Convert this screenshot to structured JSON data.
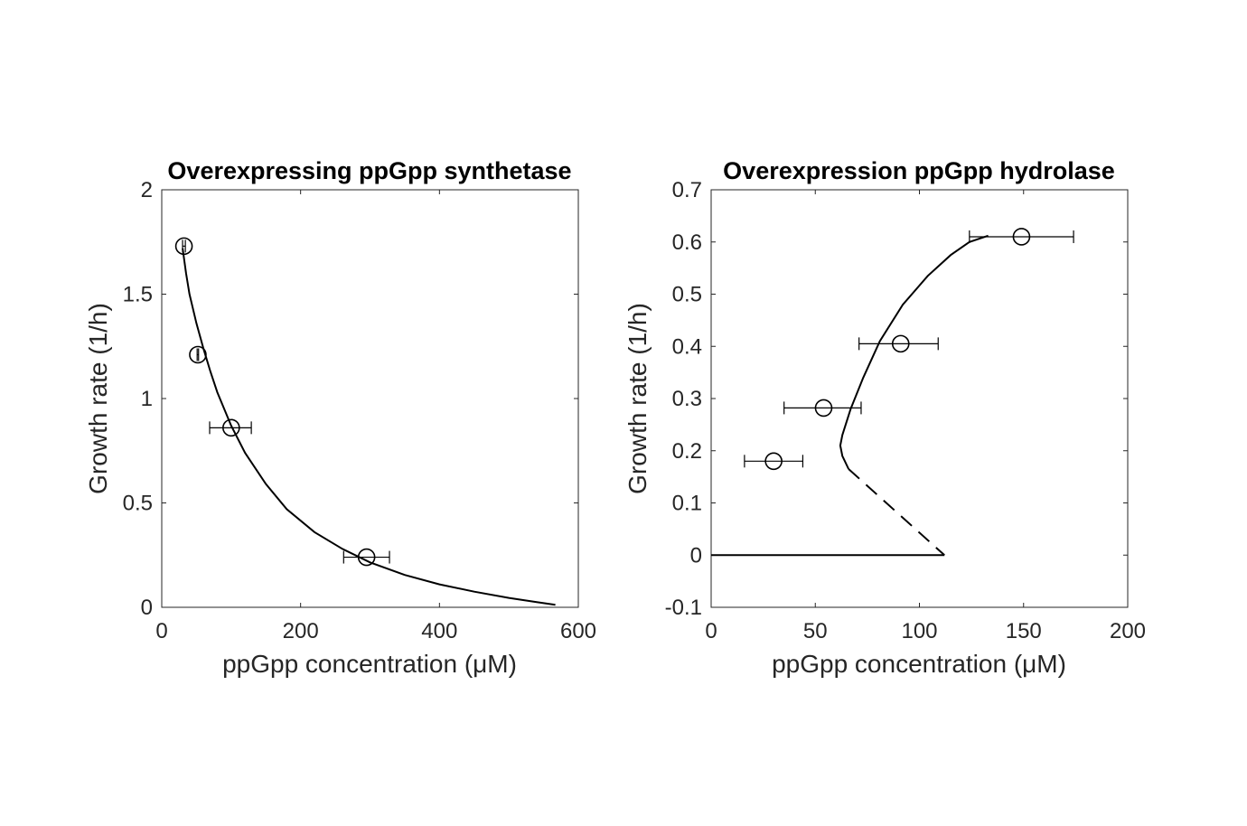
{
  "chart_data": [
    {
      "type": "scatter",
      "title": "Overexpressing ppGpp synthetase",
      "xlabel": "ppGpp concentration (μM)",
      "ylabel": "Growth rate (1/h)",
      "xlim": [
        0,
        600
      ],
      "ylim": [
        0,
        2
      ],
      "xticks": [
        0,
        200,
        400,
        600
      ],
      "yticks": [
        0,
        0.5,
        1,
        1.5,
        2
      ],
      "xtick_labels": [
        "0",
        "200",
        "400",
        "600"
      ],
      "ytick_labels": [
        "0",
        "0.5",
        "1",
        "1.5",
        "2"
      ],
      "grid": false,
      "points": [
        {
          "x": 32,
          "y": 1.73,
          "xerr": [
            30,
            34
          ]
        },
        {
          "x": 52,
          "y": 1.21,
          "xerr": [
            51,
            53
          ]
        },
        {
          "x": 100,
          "y": 0.86,
          "xerr": [
            69,
            129
          ]
        },
        {
          "x": 295,
          "y": 0.24,
          "xerr": [
            262,
            328
          ]
        }
      ],
      "curves": [
        {
          "style": "solid",
          "points": [
            [
              30,
              1.72
            ],
            [
              35,
              1.6
            ],
            [
              40,
              1.5
            ],
            [
              50,
              1.36
            ],
            [
              60,
              1.24
            ],
            [
              70,
              1.13
            ],
            [
              80,
              1.03
            ],
            [
              100,
              0.87
            ],
            [
              120,
              0.74
            ],
            [
              150,
              0.59
            ],
            [
              180,
              0.47
            ],
            [
              220,
              0.36
            ],
            [
              260,
              0.28
            ],
            [
              300,
              0.215
            ],
            [
              350,
              0.155
            ],
            [
              400,
              0.11
            ],
            [
              450,
              0.075
            ],
            [
              500,
              0.045
            ],
            [
              540,
              0.025
            ],
            [
              567,
              0.012
            ]
          ]
        }
      ]
    },
    {
      "type": "scatter",
      "title": "Overexpression ppGpp hydrolase",
      "xlabel": "ppGpp concentration (μM)",
      "ylabel": "Growth rate (1/h)",
      "xlim": [
        0,
        200
      ],
      "ylim": [
        -0.1,
        0.7
      ],
      "xticks": [
        0,
        50,
        100,
        150,
        200
      ],
      "yticks": [
        -0.1,
        0,
        0.1,
        0.2,
        0.3,
        0.4,
        0.5,
        0.6,
        0.7
      ],
      "xtick_labels": [
        "0",
        "50",
        "100",
        "150",
        "200"
      ],
      "ytick_labels": [
        "-0.1",
        "0",
        "0.1",
        "0.2",
        "0.3",
        "0.4",
        "0.5",
        "0.6",
        "0.7"
      ],
      "grid": false,
      "points": [
        {
          "x": 149,
          "y": 0.61,
          "xerr": [
            124,
            174
          ]
        },
        {
          "x": 91,
          "y": 0.405,
          "xerr": [
            71,
            109
          ]
        },
        {
          "x": 54,
          "y": 0.282,
          "xerr": [
            35,
            72
          ]
        },
        {
          "x": 30,
          "y": 0.18,
          "xerr": [
            16,
            44
          ]
        }
      ],
      "curves": [
        {
          "style": "solid",
          "points": [
            [
              133,
              0.612
            ],
            [
              124,
              0.6
            ],
            [
              115,
              0.575
            ],
            [
              104,
              0.535
            ],
            [
              92,
              0.48
            ],
            [
              81,
              0.41
            ],
            [
              73,
              0.34
            ],
            [
              67,
              0.28
            ],
            [
              63,
              0.23
            ],
            [
              62,
              0.21
            ],
            [
              63,
              0.19
            ],
            [
              66,
              0.165
            ]
          ]
        },
        {
          "style": "dashed",
          "points": [
            [
              66,
              0.165
            ],
            [
              112,
              0.0
            ]
          ]
        },
        {
          "style": "solid",
          "points": [
            [
              0,
              0.0
            ],
            [
              112,
              0.0
            ]
          ]
        }
      ]
    }
  ]
}
